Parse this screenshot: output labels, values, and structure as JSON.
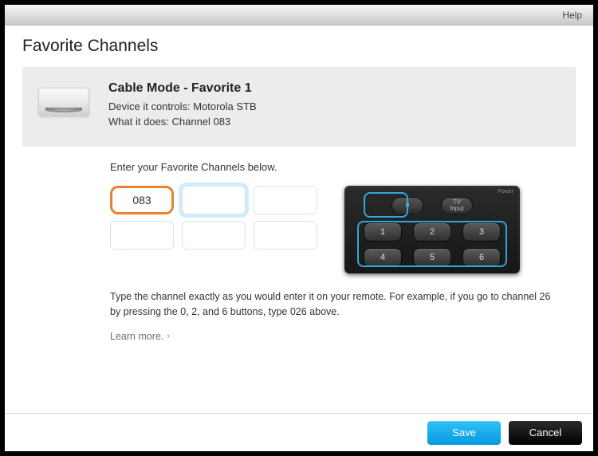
{
  "colors": {
    "highlight_border": "#e8822e",
    "save_button_bg_top": "#2ec2f7",
    "save_button_bg_bottom": "#0799e0",
    "cancel_button_bg": "#000000",
    "panel_bg": "#ececec",
    "remote_outline": "#2fa9dd"
  },
  "titlebar": {
    "help_label": "Help"
  },
  "page": {
    "title": "Favorite Channels"
  },
  "summary": {
    "mode_title": "Cable Mode - Favorite 1",
    "controls_label": "Device it controls: ",
    "controls_value": "Motorola STB",
    "does_label": "What it does: ",
    "does_value": "Channel 083"
  },
  "form": {
    "prompt": "Enter your Favorite Channels below.",
    "inputs": [
      {
        "value": "083",
        "highlighted": true
      },
      {
        "value": "",
        "highlighted": false
      },
      {
        "value": "",
        "highlighted": false
      },
      {
        "value": "",
        "highlighted": false
      },
      {
        "value": "",
        "highlighted": false
      },
      {
        "value": "",
        "highlighted": false
      }
    ],
    "help_text": "Type the channel exactly as you would enter it on your remote. For example, if you go to channel 26 by pressing the 0, 2, and 6 buttons, type 026 above.",
    "learn_more": "Learn more."
  },
  "remote": {
    "power_label": "Power",
    "top_buttons": [
      "0",
      "TV\nInput"
    ],
    "grid_buttons": [
      "1",
      "2",
      "3",
      "4",
      "5",
      "6"
    ]
  },
  "footer": {
    "save": "Save",
    "cancel": "Cancel"
  }
}
